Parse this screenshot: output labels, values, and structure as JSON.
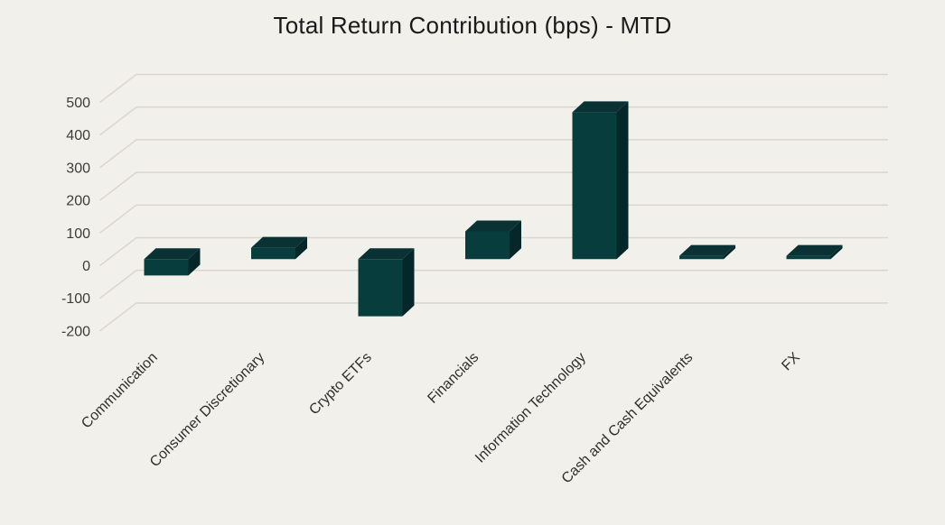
{
  "chart_data": {
    "type": "bar",
    "variant": "3d-cuboid",
    "title": "Total Return Contribution (bps) - MTD",
    "categories": [
      "Communication",
      "Consumer Discretionary",
      "Crypto ETFs",
      "Financials",
      "Information Technology",
      "Cash and Cash Equivalents",
      "FX"
    ],
    "values": [
      -50,
      35,
      -175,
      85,
      450,
      10,
      10
    ],
    "yticks": [
      500,
      400,
      300,
      200,
      100,
      0,
      -100,
      -200
    ],
    "ylim": [
      -200,
      500
    ],
    "xlabel": "",
    "ylabel": "",
    "grid": true,
    "legend": "none",
    "x_label_rotation_deg": -45,
    "colors": {
      "background": "#f2f0ea",
      "bar_front": "#083d3e",
      "bar_top": "#0a3234",
      "bar_side": "#052729",
      "gridline": "#dad7d2",
      "title_text": "#1a1a1a",
      "tick_text": "#3c3c3c",
      "category_text": "#2e2e2e"
    }
  }
}
